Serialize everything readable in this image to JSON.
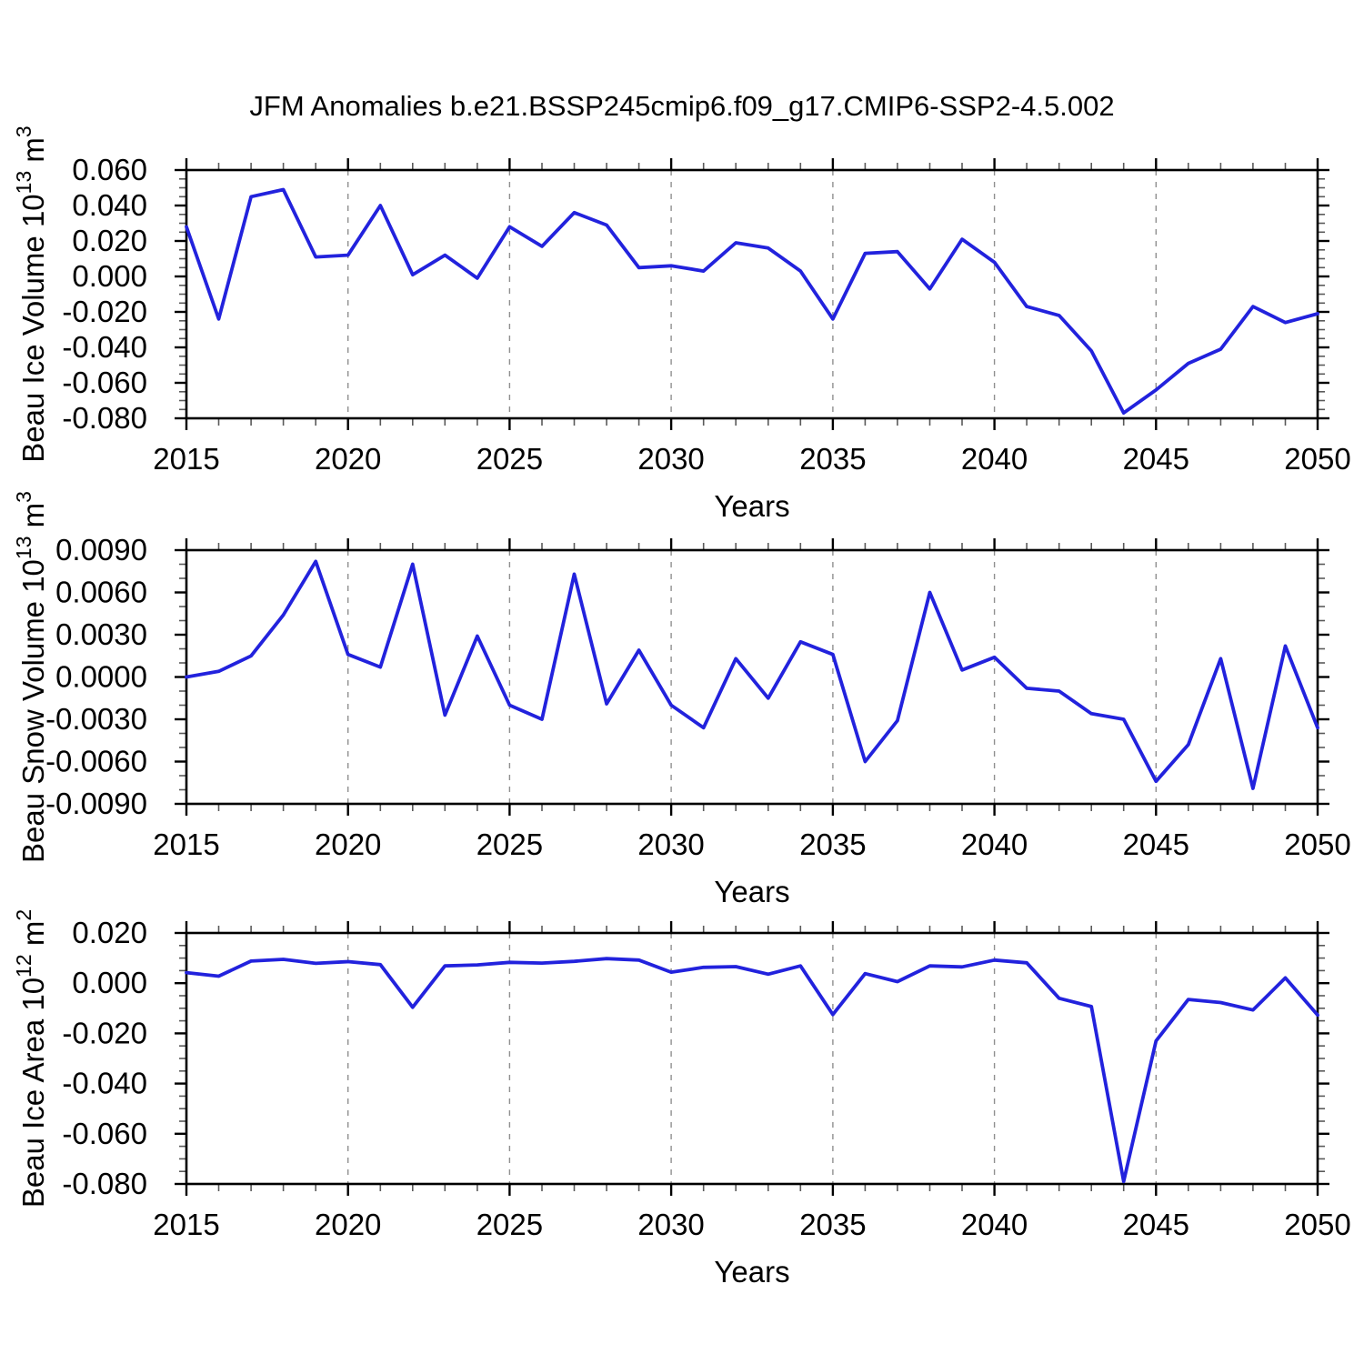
{
  "title": "JFM Anomalies b.e21.BSSP245cmip6.f09_g17.CMIP6-SSP2-4.5.002",
  "colors": {
    "line": "#2222DD",
    "grid": "#8F8F8F",
    "axis": "#000000",
    "minor_tick": "#5A5A5A",
    "text": "#000000"
  },
  "chart_data": [
    {
      "type": "line",
      "id": "beau-ice-volume",
      "ylabel": "Beau Ice Volume 10^13 m^3",
      "ylabel_parts": [
        {
          "t": "Beau Ice Volume 10"
        },
        {
          "t": "13",
          "sup": true
        },
        {
          "t": " m"
        },
        {
          "t": "3",
          "sup": true
        }
      ],
      "xlabel": "Years",
      "xlim": [
        2015,
        2050
      ],
      "ylim": [
        -0.08,
        0.06
      ],
      "grid": "dashed-vertical",
      "legend": "none",
      "xticks": [
        2015,
        2020,
        2025,
        2030,
        2035,
        2040,
        2045,
        2050
      ],
      "xtick_labels": [
        "2015",
        "2020",
        "2025",
        "2030",
        "2035",
        "2040",
        "2045",
        "2050"
      ],
      "xminor_step": 1,
      "yticks": [
        0.06,
        0.04,
        0.02,
        0.0,
        -0.02,
        -0.04,
        -0.06,
        -0.08
      ],
      "ytick_labels": [
        "0.060",
        "0.040",
        "0.020",
        "0.000",
        "-0.020",
        "-0.040",
        "-0.060",
        "-0.080"
      ],
      "yminor_step": 0.005,
      "grid_years": [
        2020,
        2025,
        2030,
        2035,
        2040,
        2045
      ],
      "x": [
        2015,
        2016,
        2017,
        2018,
        2019,
        2020,
        2021,
        2022,
        2023,
        2024,
        2025,
        2026,
        2027,
        2028,
        2029,
        2030,
        2031,
        2032,
        2033,
        2034,
        2035,
        2036,
        2037,
        2038,
        2039,
        2040,
        2041,
        2042,
        2043,
        2044,
        2045,
        2046,
        2047,
        2048,
        2049,
        2050
      ],
      "values": [
        0.028,
        -0.024,
        0.045,
        0.049,
        0.011,
        0.012,
        0.04,
        0.001,
        0.012,
        -0.001,
        0.028,
        0.017,
        0.036,
        0.029,
        0.005,
        0.006,
        0.003,
        0.019,
        0.016,
        0.003,
        -0.024,
        0.013,
        0.014,
        -0.007,
        0.021,
        0.008,
        -0.017,
        -0.022,
        -0.042,
        -0.077,
        -0.064,
        -0.049,
        -0.041,
        -0.017,
        -0.026,
        -0.021
      ]
    },
    {
      "type": "line",
      "id": "beau-snow-volume",
      "ylabel": "Beau Snow Volume 10^13 m^3",
      "ylabel_parts": [
        {
          "t": "Beau Snow Volume 10"
        },
        {
          "t": "13",
          "sup": true
        },
        {
          "t": " m"
        },
        {
          "t": "3",
          "sup": true
        }
      ],
      "xlabel": "Years",
      "xlim": [
        2015,
        2050
      ],
      "ylim": [
        -0.009,
        0.009
      ],
      "grid": "dashed-vertical",
      "legend": "none",
      "xticks": [
        2015,
        2020,
        2025,
        2030,
        2035,
        2040,
        2045,
        2050
      ],
      "xtick_labels": [
        "2015",
        "2020",
        "2025",
        "2030",
        "2035",
        "2040",
        "2045",
        "2050"
      ],
      "xminor_step": 1,
      "yticks": [
        0.009,
        0.006,
        0.003,
        0.0,
        -0.003,
        -0.006,
        -0.009
      ],
      "ytick_labels": [
        "0.0090",
        "0.0060",
        "0.0030",
        "0.0000",
        "-0.0030",
        "-0.0060",
        "-0.0090"
      ],
      "yminor_step": 0.001,
      "grid_years": [
        2020,
        2025,
        2030,
        2035,
        2040,
        2045
      ],
      "x": [
        2015,
        2016,
        2017,
        2018,
        2019,
        2020,
        2021,
        2022,
        2023,
        2024,
        2025,
        2026,
        2027,
        2028,
        2029,
        2030,
        2031,
        2032,
        2033,
        2034,
        2035,
        2036,
        2037,
        2038,
        2039,
        2040,
        2041,
        2042,
        2043,
        2044,
        2045,
        2046,
        2047,
        2048,
        2049,
        2050
      ],
      "values": [
        0.0,
        0.0004,
        0.0015,
        0.0044,
        0.0082,
        0.0016,
        0.0007,
        0.008,
        -0.0027,
        0.0029,
        -0.002,
        -0.003,
        0.0073,
        -0.0019,
        0.0019,
        -0.002,
        -0.0036,
        0.0013,
        -0.0015,
        0.0025,
        0.0016,
        -0.006,
        -0.0031,
        0.006,
        0.0005,
        0.0014,
        -0.0008,
        -0.001,
        -0.0026,
        -0.003,
        -0.0074,
        -0.0048,
        0.0013,
        -0.0079,
        0.0022,
        -0.0036
      ]
    },
    {
      "type": "line",
      "id": "beau-ice-area",
      "ylabel": "Beau Ice Area 10^12 m^2",
      "ylabel_parts": [
        {
          "t": "Beau Ice Area 10"
        },
        {
          "t": "12",
          "sup": true
        },
        {
          "t": " m"
        },
        {
          "t": "2",
          "sup": true
        }
      ],
      "xlabel": "Years",
      "xlim": [
        2015,
        2050
      ],
      "ylim": [
        -0.08,
        0.02
      ],
      "grid": "dashed-vertical",
      "legend": "none",
      "xticks": [
        2015,
        2020,
        2025,
        2030,
        2035,
        2040,
        2045,
        2050
      ],
      "xtick_labels": [
        "2015",
        "2020",
        "2025",
        "2030",
        "2035",
        "2040",
        "2045",
        "2050"
      ],
      "xminor_step": 1,
      "yticks": [
        0.02,
        0.0,
        -0.02,
        -0.04,
        -0.06,
        -0.08
      ],
      "ytick_labels": [
        "0.020",
        "0.000",
        "-0.020",
        "-0.040",
        "-0.060",
        "-0.080"
      ],
      "yminor_step": 0.005,
      "grid_years": [
        2020,
        2025,
        2030,
        2035,
        2040,
        2045
      ],
      "x": [
        2015,
        2016,
        2017,
        2018,
        2019,
        2020,
        2021,
        2022,
        2023,
        2024,
        2025,
        2026,
        2027,
        2028,
        2029,
        2030,
        2031,
        2032,
        2033,
        2034,
        2035,
        2036,
        2037,
        2038,
        2039,
        2040,
        2041,
        2042,
        2043,
        2044,
        2045,
        2046,
        2047,
        2048,
        2049,
        2050
      ],
      "values": [
        0.0042,
        0.0028,
        0.0088,
        0.0095,
        0.0079,
        0.0086,
        0.0074,
        -0.0096,
        0.0069,
        0.0073,
        0.0083,
        0.008,
        0.0087,
        0.0098,
        0.0092,
        0.0044,
        0.0063,
        0.0066,
        0.0036,
        0.0069,
        -0.0125,
        0.0038,
        0.0006,
        0.0069,
        0.0065,
        0.0092,
        0.0081,
        -0.006,
        -0.0093,
        -0.079,
        -0.023,
        -0.0065,
        -0.0077,
        -0.0107,
        0.0021,
        -0.0127
      ]
    }
  ]
}
